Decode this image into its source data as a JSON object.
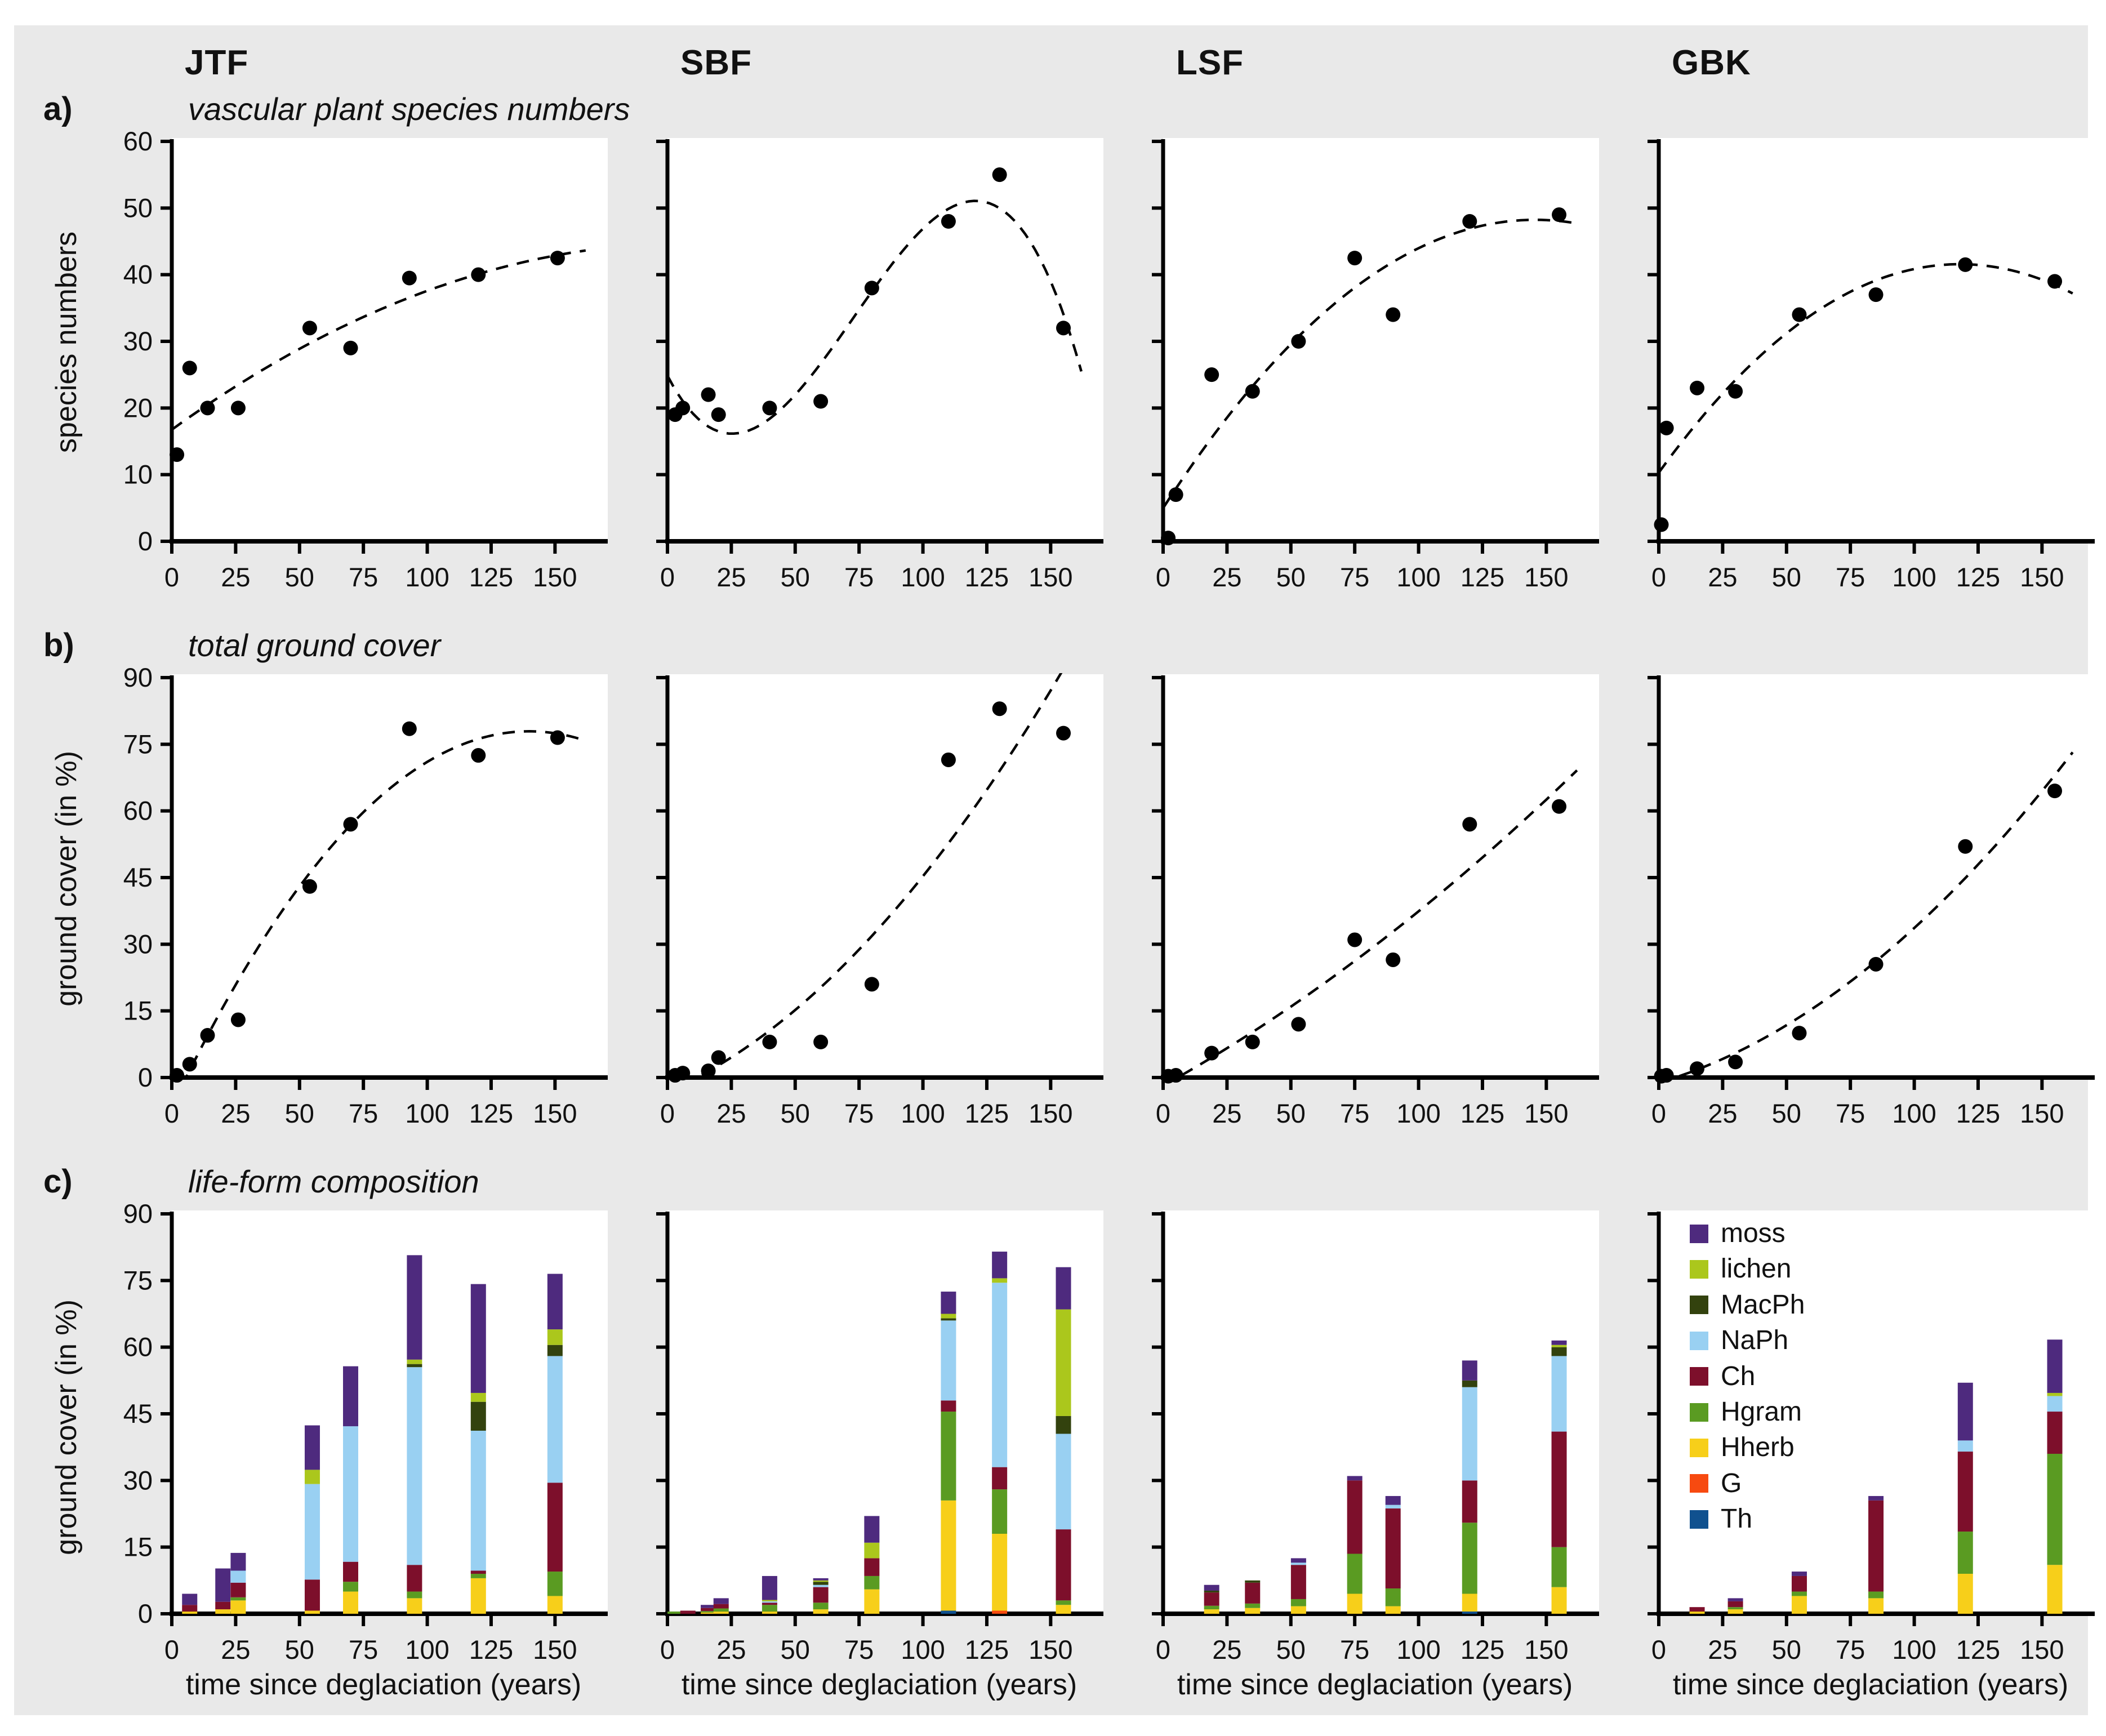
{
  "figure": {
    "background": "#e9e9e9",
    "columns": [
      "JTF",
      "SBF",
      "LSF",
      "GBK"
    ],
    "row_labels": [
      "a)",
      "b)",
      "c)"
    ],
    "row_titles": [
      "vascular plant species numbers",
      "total ground cover",
      "life-form composition"
    ],
    "y_axis_titles": [
      "species numbers",
      "ground cover (in %)",
      "ground cover (in %)"
    ],
    "x_axis_title": "time since deglaciation (years)",
    "x_ticks": [
      0,
      25,
      50,
      75,
      100,
      125,
      150
    ],
    "y_ticks_row_a": [
      0,
      10,
      20,
      30,
      40,
      50,
      60
    ],
    "y_ticks_row_bc": [
      0,
      15,
      30,
      45,
      60,
      75,
      90
    ],
    "point_color": "#000000",
    "trend_style": "dashed"
  },
  "lifeforms": [
    {
      "name": "moss",
      "color": "#4e2a7e"
    },
    {
      "name": "lichen",
      "color": "#abc71c"
    },
    {
      "name": "MacPh",
      "color": "#33420e"
    },
    {
      "name": "NaPh",
      "color": "#99d0f2"
    },
    {
      "name": "Ch",
      "color": "#7d0f2b"
    },
    {
      "name": "Hgram",
      "color": "#5a9b22"
    },
    {
      "name": "Hherb",
      "color": "#f7cf1a"
    },
    {
      "name": "G",
      "color": "#f74a10"
    },
    {
      "name": "Th",
      "color": "#10518f"
    }
  ],
  "chart_data": [
    {
      "type": "scatter",
      "row": "a",
      "site": "JTF",
      "title": "vascular plant species numbers",
      "ylabel": "species numbers",
      "ylim": [
        0,
        60
      ],
      "ytick_step": 10,
      "show_y_labels": true,
      "trend_degree": 2,
      "points": [
        [
          2,
          13
        ],
        [
          7,
          26
        ],
        [
          14,
          20
        ],
        [
          26,
          20
        ],
        [
          54,
          32
        ],
        [
          70,
          29
        ],
        [
          93,
          39.5
        ],
        [
          120,
          40
        ],
        [
          151,
          42.5
        ]
      ]
    },
    {
      "type": "scatter",
      "row": "a",
      "site": "SBF",
      "title": "vascular plant species numbers",
      "ylabel": "species numbers",
      "ylim": [
        0,
        60
      ],
      "ytick_step": 10,
      "show_y_labels": false,
      "trend_degree": 3,
      "points": [
        [
          3,
          19
        ],
        [
          6,
          20
        ],
        [
          16,
          22
        ],
        [
          20,
          19
        ],
        [
          40,
          20
        ],
        [
          60,
          21
        ],
        [
          80,
          38
        ],
        [
          110,
          48
        ],
        [
          130,
          55
        ],
        [
          155,
          32
        ]
      ]
    },
    {
      "type": "scatter",
      "row": "a",
      "site": "LSF",
      "title": "vascular plant species numbers",
      "ylabel": "species numbers",
      "ylim": [
        0,
        60
      ],
      "ytick_step": 10,
      "show_y_labels": false,
      "trend_degree": 2,
      "points": [
        [
          2,
          0.5
        ],
        [
          5,
          7
        ],
        [
          19,
          25
        ],
        [
          35,
          22.5
        ],
        [
          53,
          30
        ],
        [
          75,
          42.5
        ],
        [
          90,
          34
        ],
        [
          120,
          48
        ],
        [
          155,
          49
        ]
      ]
    },
    {
      "type": "scatter",
      "row": "a",
      "site": "GBK",
      "title": "vascular plant species numbers",
      "ylabel": "species numbers",
      "ylim": [
        0,
        60
      ],
      "ytick_step": 10,
      "show_y_labels": false,
      "trend_degree": 2,
      "points": [
        [
          1,
          2.5
        ],
        [
          3,
          17
        ],
        [
          15,
          23
        ],
        [
          30,
          22.5
        ],
        [
          55,
          34
        ],
        [
          85,
          37
        ],
        [
          120,
          41.5
        ],
        [
          155,
          39
        ]
      ]
    },
    {
      "type": "scatter",
      "row": "b",
      "site": "JTF",
      "title": "total ground cover",
      "ylabel": "ground cover (in %)",
      "ylim": [
        0,
        90
      ],
      "ytick_step": 15,
      "show_y_labels": true,
      "trend_degree": 2,
      "points": [
        [
          2,
          0.5
        ],
        [
          7,
          3
        ],
        [
          14,
          9.5
        ],
        [
          26,
          13
        ],
        [
          54,
          43
        ],
        [
          70,
          57
        ],
        [
          93,
          78.5
        ],
        [
          120,
          72.5
        ],
        [
          151,
          76.5
        ]
      ]
    },
    {
      "type": "scatter",
      "row": "b",
      "site": "SBF",
      "title": "total ground cover",
      "ylabel": "ground cover (in %)",
      "ylim": [
        0,
        90
      ],
      "ytick_step": 15,
      "show_y_labels": false,
      "trend_degree": 2,
      "points": [
        [
          3,
          0.5
        ],
        [
          6,
          1
        ],
        [
          16,
          1.5
        ],
        [
          20,
          4.5
        ],
        [
          40,
          8
        ],
        [
          60,
          8
        ],
        [
          80,
          21
        ],
        [
          110,
          71.5
        ],
        [
          130,
          83
        ],
        [
          155,
          77.5
        ]
      ]
    },
    {
      "type": "scatter",
      "row": "b",
      "site": "LSF",
      "title": "total ground cover",
      "ylabel": "ground cover (in %)",
      "ylim": [
        0,
        90
      ],
      "ytick_step": 15,
      "show_y_labels": false,
      "trend_degree": 2,
      "points": [
        [
          2,
          0.3
        ],
        [
          5,
          0.5
        ],
        [
          19,
          5.5
        ],
        [
          35,
          8
        ],
        [
          53,
          12
        ],
        [
          75,
          31
        ],
        [
          90,
          26.5
        ],
        [
          120,
          57
        ],
        [
          155,
          61
        ]
      ]
    },
    {
      "type": "scatter",
      "row": "b",
      "site": "GBK",
      "title": "total ground cover",
      "ylabel": "ground cover (in %)",
      "ylim": [
        0,
        90
      ],
      "ytick_step": 15,
      "show_y_labels": false,
      "trend_degree": 2,
      "points": [
        [
          1,
          0.3
        ],
        [
          3,
          0.5
        ],
        [
          15,
          2
        ],
        [
          30,
          3.5
        ],
        [
          55,
          10
        ],
        [
          85,
          25.5
        ],
        [
          120,
          52
        ],
        [
          155,
          64.5
        ]
      ]
    },
    {
      "type": "stacked-bar",
      "row": "c",
      "site": "JTF",
      "title": "life-form composition",
      "ylabel": "ground cover (in %)",
      "ylim": [
        0,
        90
      ],
      "ytick_step": 15,
      "show_y_labels": true,
      "categories": [
        7,
        20,
        26,
        55,
        70,
        95,
        120,
        150
      ],
      "series": [
        {
          "name": "Th",
          "values": [
            0,
            0,
            0,
            0,
            0,
            0,
            0,
            0
          ]
        },
        {
          "name": "G",
          "values": [
            0,
            0,
            0,
            0,
            0,
            0,
            0,
            0
          ]
        },
        {
          "name": "Hherb",
          "values": [
            0.5,
            1,
            3,
            0.7,
            5,
            3.5,
            8,
            4
          ]
        },
        {
          "name": "Hgram",
          "values": [
            0,
            0,
            0.7,
            0,
            2.2,
            1.5,
            1,
            5.5
          ]
        },
        {
          "name": "Ch",
          "values": [
            1.5,
            1.7,
            3.3,
            7,
            4.5,
            6,
            0.7,
            20
          ]
        },
        {
          "name": "NaPh",
          "values": [
            0,
            0,
            2.7,
            21.5,
            30.5,
            44.5,
            31.5,
            28.5
          ]
        },
        {
          "name": "MacPh",
          "values": [
            0,
            0,
            0,
            0,
            0,
            0.7,
            6.5,
            2.5
          ]
        },
        {
          "name": "lichen",
          "values": [
            0,
            0,
            0,
            3.2,
            0,
            1,
            2,
            3.5
          ]
        },
        {
          "name": "moss",
          "values": [
            2.5,
            7.5,
            4,
            10,
            13.5,
            23.5,
            24.5,
            12.5
          ]
        }
      ]
    },
    {
      "type": "stacked-bar",
      "row": "c",
      "site": "SBF",
      "title": "life-form composition",
      "ylabel": "ground cover (in %)",
      "ylim": [
        0,
        90
      ],
      "ytick_step": 15,
      "show_y_labels": false,
      "categories": [
        3,
        8,
        16,
        21,
        40,
        60,
        80,
        110,
        130,
        155
      ],
      "series": [
        {
          "name": "Th",
          "values": [
            0,
            0,
            0,
            0,
            0,
            0,
            0,
            0.7,
            0,
            0
          ]
        },
        {
          "name": "G",
          "values": [
            0,
            0,
            0,
            0,
            0,
            0,
            0,
            0,
            0.7,
            0
          ]
        },
        {
          "name": "Hherb",
          "values": [
            0,
            0,
            0.3,
            0.5,
            0.5,
            1,
            5.5,
            24.8,
            17.3,
            2
          ]
        },
        {
          "name": "Hgram",
          "values": [
            0.5,
            0,
            0.3,
            0.7,
            1.5,
            1.5,
            3,
            20,
            10,
            1
          ]
        },
        {
          "name": "Ch",
          "values": [
            0,
            0.7,
            0.7,
            1,
            0.5,
            3.5,
            4,
            2.5,
            5,
            16
          ]
        },
        {
          "name": "NaPh",
          "values": [
            0,
            0,
            0,
            0,
            0.3,
            0.5,
            0,
            18,
            41.5,
            21.5
          ]
        },
        {
          "name": "MacPh",
          "values": [
            0,
            0,
            0,
            0,
            0,
            0.7,
            0,
            0.5,
            0,
            4
          ]
        },
        {
          "name": "lichen",
          "values": [
            0,
            0,
            0,
            0,
            0.3,
            0.3,
            3.5,
            1,
            1,
            24
          ]
        },
        {
          "name": "moss",
          "values": [
            0,
            0,
            0.7,
            1.3,
            5.4,
            0.5,
            6,
            5,
            6,
            9.5
          ]
        }
      ]
    },
    {
      "type": "stacked-bar",
      "row": "c",
      "site": "LSF",
      "title": "life-form composition",
      "ylabel": "ground cover (in %)",
      "ylim": [
        0,
        90
      ],
      "ytick_step": 15,
      "show_y_labels": false,
      "categories": [
        19,
        35,
        53,
        75,
        90,
        120,
        155
      ],
      "series": [
        {
          "name": "Th",
          "values": [
            0,
            0,
            0,
            0,
            0,
            0.5,
            0
          ]
        },
        {
          "name": "G",
          "values": [
            0,
            0,
            0,
            0,
            0,
            0,
            0
          ]
        },
        {
          "name": "Hherb",
          "values": [
            1,
            1.3,
            1.7,
            4.5,
            1.7,
            4,
            6
          ]
        },
        {
          "name": "Hgram",
          "values": [
            0.8,
            1,
            1.6,
            9,
            4,
            16,
            9
          ]
        },
        {
          "name": "Ch",
          "values": [
            3,
            4.7,
            7.7,
            16.5,
            18,
            9.5,
            26
          ]
        },
        {
          "name": "NaPh",
          "values": [
            0,
            0,
            0.5,
            0,
            0.8,
            21,
            17
          ]
        },
        {
          "name": "MacPh",
          "values": [
            0.4,
            0.5,
            0,
            0,
            0,
            1.5,
            2
          ]
        },
        {
          "name": "lichen",
          "values": [
            0,
            0,
            0,
            0,
            0,
            0,
            0.5
          ]
        },
        {
          "name": "moss",
          "values": [
            1.3,
            0,
            1,
            1,
            2,
            4.5,
            1
          ]
        }
      ]
    },
    {
      "type": "stacked-bar",
      "row": "c",
      "site": "GBK",
      "title": "life-form composition",
      "ylabel": "ground cover (in %)",
      "ylim": [
        0,
        90
      ],
      "ytick_step": 15,
      "show_y_labels": false,
      "categories": [
        15,
        30,
        55,
        85,
        120,
        155
      ],
      "series": [
        {
          "name": "Th",
          "values": [
            0,
            0,
            0,
            0,
            0,
            0
          ]
        },
        {
          "name": "G",
          "values": [
            0,
            0,
            0,
            0,
            0,
            0
          ]
        },
        {
          "name": "Hherb",
          "values": [
            0.5,
            1,
            4,
            3.5,
            9,
            11
          ]
        },
        {
          "name": "Hgram",
          "values": [
            0,
            0.5,
            1,
            1.5,
            9.5,
            25
          ]
        },
        {
          "name": "Ch",
          "values": [
            1,
            1.3,
            3.5,
            20.5,
            18,
            9.5
          ]
        },
        {
          "name": "NaPh",
          "values": [
            0,
            0,
            0,
            0,
            2.5,
            3.5
          ]
        },
        {
          "name": "MacPh",
          "values": [
            0,
            0,
            0,
            0,
            0,
            0
          ]
        },
        {
          "name": "lichen",
          "values": [
            0,
            0,
            0,
            0,
            0,
            0.7
          ]
        },
        {
          "name": "moss",
          "values": [
            0,
            0.7,
            1,
            1,
            13,
            12
          ]
        }
      ]
    }
  ]
}
